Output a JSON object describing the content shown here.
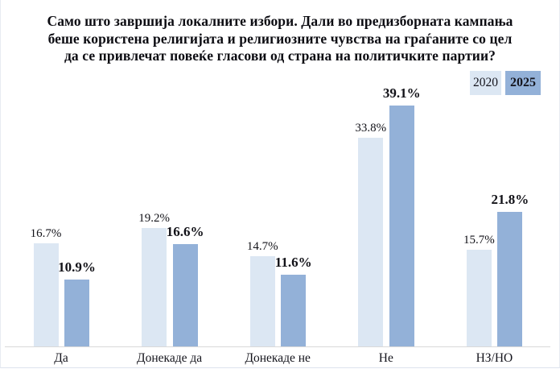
{
  "title": {
    "lines": [
      "Само што завршија локалните избори. Дали во предизборната кампања",
      "беше користена религијата и религиозните чувства на граѓаните со цел",
      "да се привлечат повеќе гласови од страна на политичките партии?"
    ]
  },
  "colors": {
    "bar_2020": "#dce7f3",
    "bar_2025": "#93b1d8",
    "baseline": "#d9d9d9",
    "text": "#121218"
  },
  "chart_data": {
    "type": "bar",
    "title": "Само што завршија локалните избори. Дали во предизборната кампања беше користена религијата и религиозните чувства на граѓаните со цел да се привлечат повеќе гласови од страна на политичките партии?",
    "categories": [
      "Да",
      "Донекаде да",
      "Донекаде не",
      "Не",
      "НЗ/НО"
    ],
    "series": [
      {
        "name": "2020",
        "values": [
          16.7,
          19.2,
          14.7,
          33.8,
          15.7
        ],
        "labels": [
          "16.7%",
          "19.2%",
          "14.7%",
          "33.8%",
          "15.7%"
        ],
        "color": "#dce7f3"
      },
      {
        "name": "2025",
        "values": [
          10.9,
          16.6,
          11.6,
          39.1,
          21.8
        ],
        "labels": [
          "10.9%",
          "16.6%",
          "11.6%",
          "39.1%",
          "21.8%"
        ],
        "color": "#93b1d8"
      }
    ],
    "xlabel": "",
    "ylabel": "",
    "value_format": "percent",
    "data_labels": true,
    "grid": false,
    "legend_position": "top-right",
    "ylim": [
      0,
      45
    ]
  }
}
